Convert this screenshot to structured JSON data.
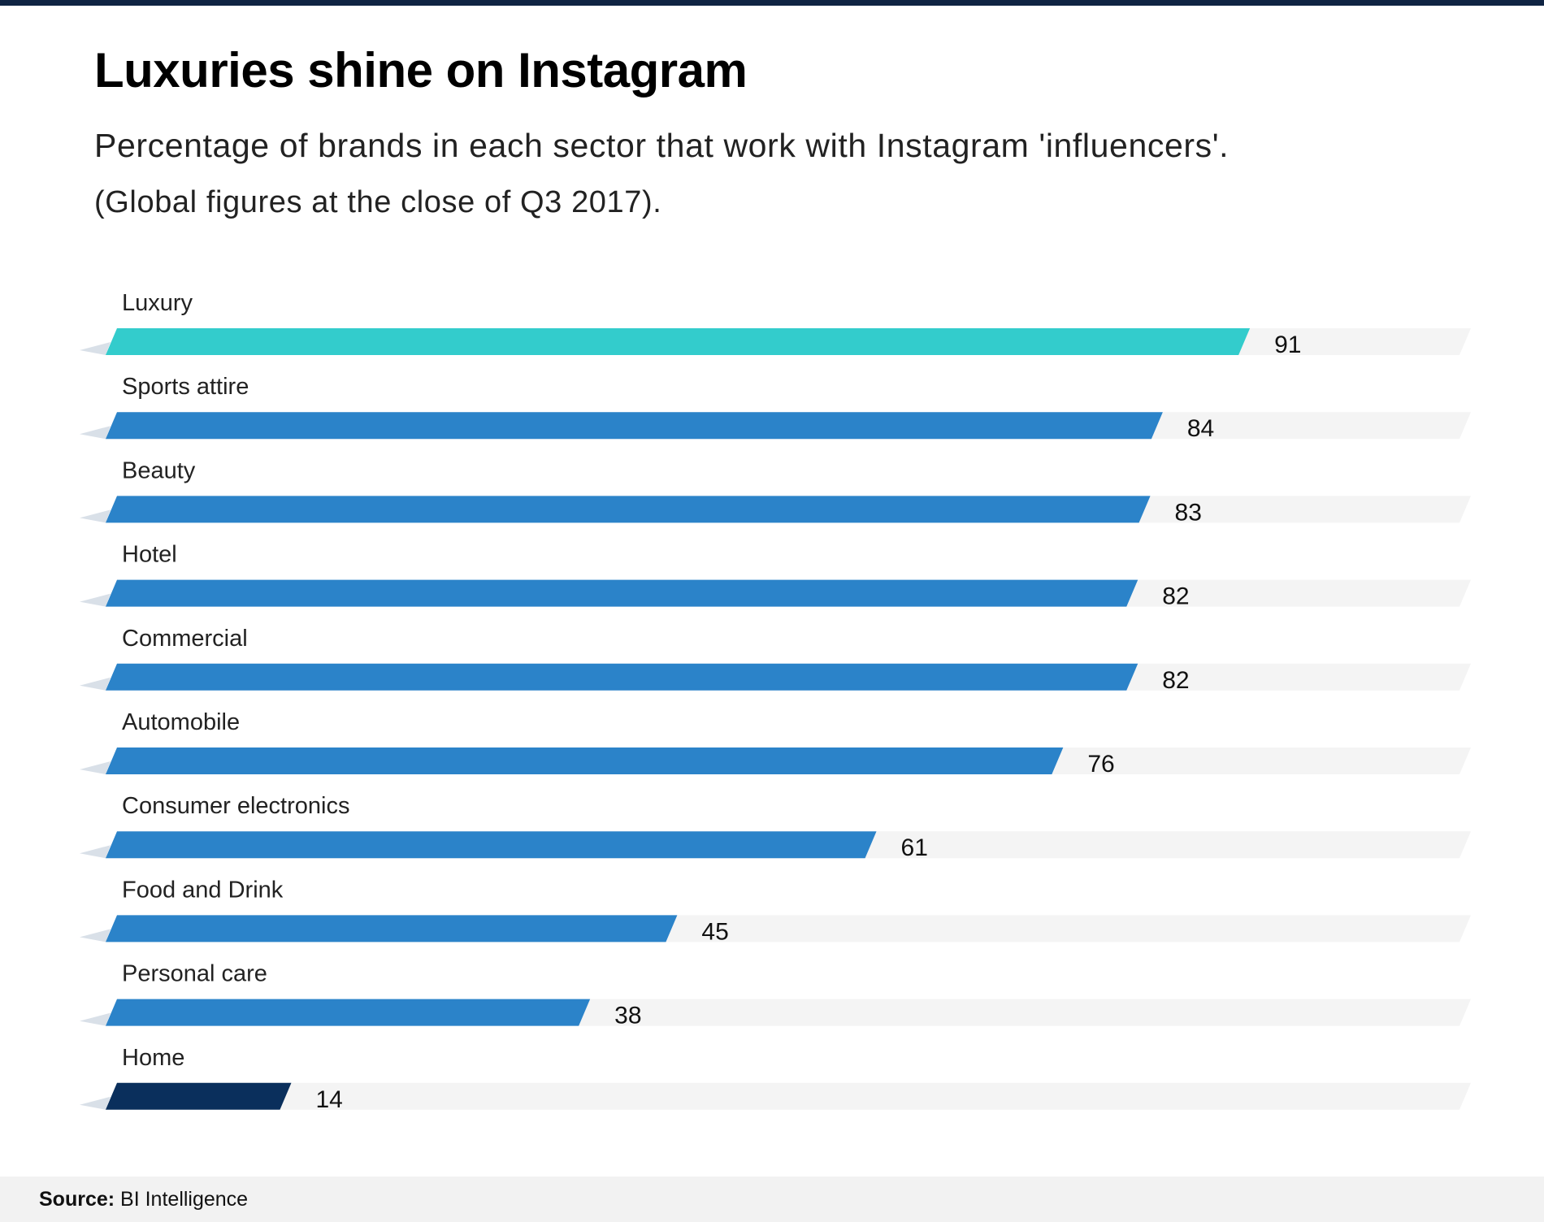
{
  "title": "Luxuries shine on Instagram",
  "subtitle": "Percentage of brands in each sector that work with Instagram 'influencers'.",
  "subtitle2": "(Global figures at the close of Q3 2017).",
  "footer": {
    "source_label": "Source:",
    "source_value": "BI Intelligence"
  },
  "colors": {
    "highlight": "#33cccc",
    "primary": "#2b83c9",
    "lowest": "#0a2f5c",
    "track": "#f4f4f4",
    "label": "#222222"
  },
  "chart_data": {
    "type": "bar",
    "orientation": "horizontal",
    "title": "Luxuries shine on Instagram",
    "xlabel": "",
    "ylabel": "",
    "xlim": [
      0,
      100
    ],
    "grid": false,
    "categories": [
      "Luxury",
      "Sports attire",
      "Beauty",
      "Hotel",
      "Commercial",
      "Automobile",
      "Consumer electronics",
      "Food and Drink",
      "Personal care",
      "Home"
    ],
    "values": [
      91,
      84,
      83,
      82,
      82,
      76,
      61,
      45,
      38,
      14
    ],
    "value_labels": [
      "91",
      "84",
      "83",
      "82",
      "82",
      "76",
      "61",
      "45",
      "38",
      "14"
    ]
  }
}
